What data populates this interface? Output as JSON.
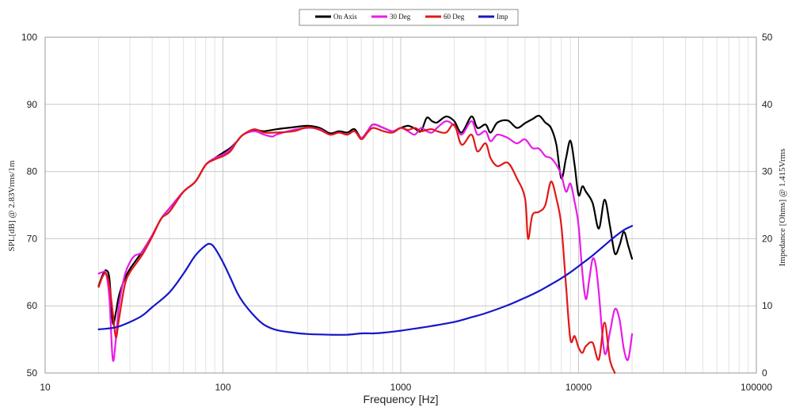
{
  "chart_data": {
    "type": "line",
    "title": "",
    "xlabel": "Frequency [Hz]",
    "ylabel_left": "SPL[dB] @ 2.83Vrms/1m",
    "ylabel_right": "Impedance [Ohms] @ 1.415Vrms",
    "x_scale": "log",
    "xlim": [
      10,
      100000
    ],
    "ylim_left": [
      50,
      100
    ],
    "ylim_right": [
      0,
      50
    ],
    "x_ticks": [
      "10",
      "100",
      "1000",
      "10000",
      "100000"
    ],
    "y_ticks_left": [
      "50",
      "60",
      "70",
      "80",
      "90",
      "100"
    ],
    "y_ticks_right": [
      "0",
      "10",
      "20",
      "30",
      "40",
      "50"
    ],
    "grid": true,
    "legend_position": "top-center",
    "series": [
      {
        "name": "On Axis",
        "color": "#000000",
        "axis": "left",
        "points": [
          [
            20,
            63
          ],
          [
            21,
            64.5
          ],
          [
            22,
            65.3
          ],
          [
            23,
            64
          ],
          [
            24,
            57.5
          ],
          [
            25,
            59
          ],
          [
            26,
            61.5
          ],
          [
            28,
            64
          ],
          [
            30,
            65.5
          ],
          [
            35,
            68
          ],
          [
            40,
            70.5
          ],
          [
            45,
            73
          ],
          [
            50,
            74.5
          ],
          [
            60,
            77
          ],
          [
            70,
            78.5
          ],
          [
            80,
            81
          ],
          [
            90,
            82
          ],
          [
            100,
            82.8
          ],
          [
            110,
            83.5
          ],
          [
            120,
            84.5
          ],
          [
            130,
            85.5
          ],
          [
            150,
            86.2
          ],
          [
            170,
            86
          ],
          [
            200,
            86.3
          ],
          [
            250,
            86.6
          ],
          [
            300,
            86.8
          ],
          [
            350,
            86.5
          ],
          [
            400,
            85.7
          ],
          [
            450,
            86
          ],
          [
            500,
            85.8
          ],
          [
            550,
            86.3
          ],
          [
            600,
            85
          ],
          [
            650,
            86
          ],
          [
            700,
            87
          ],
          [
            800,
            86.5
          ],
          [
            900,
            86
          ],
          [
            1000,
            86.5
          ],
          [
            1100,
            86.8
          ],
          [
            1200,
            86.4
          ],
          [
            1300,
            86
          ],
          [
            1400,
            88
          ],
          [
            1500,
            87.5
          ],
          [
            1600,
            87.3
          ],
          [
            1800,
            88.2
          ],
          [
            2000,
            87.5
          ],
          [
            2200,
            85.8
          ],
          [
            2500,
            88.2
          ],
          [
            2700,
            86.5
          ],
          [
            3000,
            87
          ],
          [
            3200,
            85.8
          ],
          [
            3500,
            87.3
          ],
          [
            4000,
            87.6
          ],
          [
            4500,
            86.5
          ],
          [
            5000,
            87.2
          ],
          [
            5500,
            87.8
          ],
          [
            6000,
            88.3
          ],
          [
            6500,
            87.3
          ],
          [
            7000,
            86.5
          ],
          [
            7500,
            84
          ],
          [
            8000,
            79
          ],
          [
            8500,
            82
          ],
          [
            9000,
            84.6
          ],
          [
            9500,
            81
          ],
          [
            10000,
            76.5
          ],
          [
            10500,
            77.8
          ],
          [
            11000,
            77
          ],
          [
            12000,
            75.3
          ],
          [
            13000,
            71.5
          ],
          [
            14000,
            75.8
          ],
          [
            15000,
            72
          ],
          [
            16000,
            67.8
          ],
          [
            17000,
            69
          ],
          [
            18000,
            71
          ],
          [
            19000,
            69
          ],
          [
            20000,
            67
          ]
        ]
      },
      {
        "name": "30 Deg",
        "color": "#e81be8",
        "axis": "left",
        "points": [
          [
            20,
            64.8
          ],
          [
            21,
            65
          ],
          [
            22,
            64.8
          ],
          [
            23,
            61
          ],
          [
            24,
            52
          ],
          [
            25,
            55
          ],
          [
            26,
            60
          ],
          [
            28,
            64.5
          ],
          [
            30,
            66.5
          ],
          [
            32,
            67.5
          ],
          [
            35,
            68
          ],
          [
            40,
            70.5
          ],
          [
            45,
            73
          ],
          [
            50,
            74.5
          ],
          [
            60,
            77
          ],
          [
            70,
            78.5
          ],
          [
            80,
            81
          ],
          [
            90,
            82
          ],
          [
            100,
            82.5
          ],
          [
            110,
            83.3
          ],
          [
            120,
            84.5
          ],
          [
            130,
            85.5
          ],
          [
            150,
            86
          ],
          [
            170,
            85.5
          ],
          [
            190,
            85.2
          ],
          [
            200,
            85.5
          ],
          [
            250,
            86.2
          ],
          [
            300,
            86.5
          ],
          [
            350,
            86.3
          ],
          [
            400,
            85.5
          ],
          [
            450,
            85.8
          ],
          [
            500,
            85.5
          ],
          [
            550,
            86
          ],
          [
            600,
            85
          ],
          [
            650,
            86
          ],
          [
            700,
            87
          ],
          [
            800,
            86.5
          ],
          [
            900,
            86
          ],
          [
            1000,
            86.5
          ],
          [
            1100,
            86
          ],
          [
            1200,
            85.5
          ],
          [
            1300,
            86.5
          ],
          [
            1400,
            86
          ],
          [
            1500,
            85.8
          ],
          [
            1600,
            86.5
          ],
          [
            1800,
            87.5
          ],
          [
            2000,
            86.8
          ],
          [
            2200,
            85.5
          ],
          [
            2500,
            87.5
          ],
          [
            2700,
            85.5
          ],
          [
            3000,
            86
          ],
          [
            3200,
            84.5
          ],
          [
            3500,
            85.5
          ],
          [
            4000,
            85
          ],
          [
            4500,
            84.2
          ],
          [
            5000,
            84.8
          ],
          [
            5500,
            83.5
          ],
          [
            6000,
            83.4
          ],
          [
            6500,
            82.3
          ],
          [
            7000,
            82
          ],
          [
            7500,
            81
          ],
          [
            8000,
            79.5
          ],
          [
            8500,
            77
          ],
          [
            9000,
            78.2
          ],
          [
            9500,
            75.5
          ],
          [
            10000,
            72
          ],
          [
            10500,
            65
          ],
          [
            11000,
            61
          ],
          [
            11500,
            64
          ],
          [
            12000,
            67
          ],
          [
            12500,
            66
          ],
          [
            13000,
            62
          ],
          [
            14000,
            53
          ],
          [
            15000,
            56
          ],
          [
            16000,
            59.5
          ],
          [
            17000,
            58
          ],
          [
            18000,
            53.5
          ],
          [
            19000,
            52
          ],
          [
            20000,
            55.8
          ]
        ]
      },
      {
        "name": "60 Deg",
        "color": "#e21818",
        "axis": "left",
        "points": [
          [
            20,
            62.8
          ],
          [
            21,
            64.3
          ],
          [
            22,
            64.8
          ],
          [
            23,
            63
          ],
          [
            24,
            59
          ],
          [
            25,
            55.3
          ],
          [
            26,
            58
          ],
          [
            28,
            63
          ],
          [
            30,
            65
          ],
          [
            35,
            67.5
          ],
          [
            40,
            70.3
          ],
          [
            45,
            73
          ],
          [
            50,
            74
          ],
          [
            60,
            77
          ],
          [
            70,
            78.5
          ],
          [
            80,
            81
          ],
          [
            90,
            81.8
          ],
          [
            100,
            82.3
          ],
          [
            110,
            83
          ],
          [
            120,
            84.5
          ],
          [
            130,
            85.5
          ],
          [
            150,
            86.3
          ],
          [
            170,
            85.8
          ],
          [
            200,
            85.8
          ],
          [
            250,
            86
          ],
          [
            300,
            86.6
          ],
          [
            350,
            86.2
          ],
          [
            400,
            85.5
          ],
          [
            450,
            85.8
          ],
          [
            500,
            85.5
          ],
          [
            550,
            86
          ],
          [
            600,
            84.8
          ],
          [
            650,
            85.8
          ],
          [
            700,
            86.5
          ],
          [
            800,
            86
          ],
          [
            900,
            85.8
          ],
          [
            1000,
            86.5
          ],
          [
            1100,
            86.2
          ],
          [
            1200,
            86.5
          ],
          [
            1300,
            86
          ],
          [
            1400,
            86.2
          ],
          [
            1500,
            86.3
          ],
          [
            1600,
            86
          ],
          [
            1800,
            85.8
          ],
          [
            2000,
            87
          ],
          [
            2200,
            84
          ],
          [
            2500,
            85.5
          ],
          [
            2700,
            83
          ],
          [
            3000,
            84.2
          ],
          [
            3200,
            82
          ],
          [
            3500,
            80.8
          ],
          [
            4000,
            81.3
          ],
          [
            4500,
            79
          ],
          [
            5000,
            76
          ],
          [
            5200,
            70
          ],
          [
            5500,
            73.5
          ],
          [
            6000,
            74
          ],
          [
            6500,
            75
          ],
          [
            7000,
            78.5
          ],
          [
            7500,
            76
          ],
          [
            8000,
            72
          ],
          [
            8500,
            63
          ],
          [
            9000,
            55
          ],
          [
            9500,
            55.5
          ],
          [
            10000,
            53.8
          ],
          [
            10500,
            53
          ],
          [
            11000,
            54
          ],
          [
            12000,
            54.5
          ],
          [
            13000,
            52
          ],
          [
            14000,
            57.5
          ],
          [
            15000,
            52
          ],
          [
            16000,
            50
          ]
        ]
      },
      {
        "name": "Imp",
        "color": "#1616c8",
        "axis": "right",
        "points": [
          [
            20,
            6.5
          ],
          [
            25,
            6.8
          ],
          [
            30,
            7.6
          ],
          [
            35,
            8.5
          ],
          [
            40,
            9.8
          ],
          [
            50,
            12
          ],
          [
            60,
            14.8
          ],
          [
            70,
            17.5
          ],
          [
            80,
            19
          ],
          [
            85,
            19.2
          ],
          [
            90,
            18.6
          ],
          [
            100,
            16.5
          ],
          [
            110,
            14.2
          ],
          [
            120,
            12
          ],
          [
            130,
            10.5
          ],
          [
            150,
            8.5
          ],
          [
            170,
            7.2
          ],
          [
            200,
            6.4
          ],
          [
            250,
            6
          ],
          [
            300,
            5.8
          ],
          [
            400,
            5.7
          ],
          [
            500,
            5.7
          ],
          [
            600,
            5.9
          ],
          [
            700,
            5.9
          ],
          [
            800,
            6
          ],
          [
            1000,
            6.3
          ],
          [
            1200,
            6.6
          ],
          [
            1500,
            7
          ],
          [
            2000,
            7.6
          ],
          [
            2500,
            8.3
          ],
          [
            3000,
            8.9
          ],
          [
            4000,
            10.1
          ],
          [
            5000,
            11.2
          ],
          [
            6000,
            12.2
          ],
          [
            7000,
            13.2
          ],
          [
            8000,
            14.1
          ],
          [
            9000,
            15
          ],
          [
            10000,
            15.9
          ],
          [
            12000,
            17.5
          ],
          [
            14000,
            19
          ],
          [
            16000,
            20.3
          ],
          [
            18000,
            21.3
          ],
          [
            20000,
            21.9
          ]
        ]
      }
    ]
  }
}
